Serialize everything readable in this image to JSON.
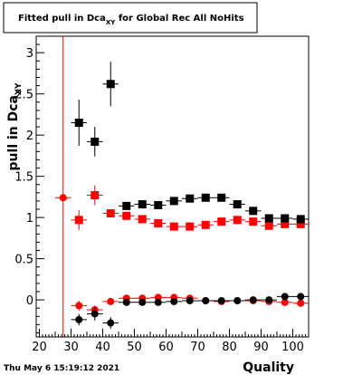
{
  "chart_data": {
    "type": "scatter",
    "title_main": "Fitted pull in Dca",
    "title_sub": "XY",
    "title_rest": " for Global Rec All NoHits",
    "xlabel": "Quality",
    "ylabel_main": "pull in Dca",
    "ylabel_sub": "XY",
    "xlim": [
      19,
      105
    ],
    "ylim": [
      -0.45,
      3.2
    ],
    "x_ticks": [
      20,
      30,
      40,
      50,
      60,
      70,
      80,
      90,
      100
    ],
    "y_ticks": [
      0,
      0.5,
      1,
      1.5,
      2,
      2.5,
      3
    ],
    "y_tick_labels": [
      "0",
      "0.5",
      "1",
      "1.5",
      "2",
      "2.5",
      "3"
    ],
    "vertical_line_x": 27.5,
    "series": [
      {
        "color": "#ff0000",
        "marker": "square",
        "points": [
          {
            "x": 32.5,
            "y": 0.97,
            "err": 0.12
          },
          {
            "x": 37.5,
            "y": 1.27,
            "err": 0.12
          },
          {
            "x": 42.5,
            "y": 1.05,
            "err": 0.03
          },
          {
            "x": 47.5,
            "y": 1.02,
            "err": 0.03
          },
          {
            "x": 52.5,
            "y": 0.98,
            "err": 0.02
          },
          {
            "x": 57.5,
            "y": 0.93,
            "err": 0.02
          },
          {
            "x": 62.5,
            "y": 0.89,
            "err": 0.02
          },
          {
            "x": 67.5,
            "y": 0.89,
            "err": 0.02
          },
          {
            "x": 72.5,
            "y": 0.91,
            "err": 0.02
          },
          {
            "x": 77.5,
            "y": 0.95,
            "err": 0.02
          },
          {
            "x": 82.5,
            "y": 0.97,
            "err": 0.02
          },
          {
            "x": 87.5,
            "y": 0.95,
            "err": 0.02
          },
          {
            "x": 92.5,
            "y": 0.9,
            "err": 0.02
          },
          {
            "x": 97.5,
            "y": 0.92,
            "err": 0.02
          },
          {
            "x": 102.5,
            "y": 0.92,
            "err": 0.02
          }
        ]
      },
      {
        "color": "#000000",
        "marker": "square",
        "points": [
          {
            "x": 32.5,
            "y": 2.15,
            "err": 0.28
          },
          {
            "x": 37.5,
            "y": 1.92,
            "err": 0.18
          },
          {
            "x": 42.5,
            "y": 2.62,
            "err": 0.27
          },
          {
            "x": 47.5,
            "y": 1.14,
            "err": 0.04
          },
          {
            "x": 52.5,
            "y": 1.16,
            "err": 0.03
          },
          {
            "x": 57.5,
            "y": 1.15,
            "err": 0.03
          },
          {
            "x": 62.5,
            "y": 1.2,
            "err": 0.03
          },
          {
            "x": 67.5,
            "y": 1.23,
            "err": 0.03
          },
          {
            "x": 72.5,
            "y": 1.24,
            "err": 0.03
          },
          {
            "x": 77.5,
            "y": 1.24,
            "err": 0.03
          },
          {
            "x": 82.5,
            "y": 1.16,
            "err": 0.03
          },
          {
            "x": 87.5,
            "y": 1.08,
            "err": 0.03
          },
          {
            "x": 92.5,
            "y": 0.99,
            "err": 0.03
          },
          {
            "x": 97.5,
            "y": 0.99,
            "err": 0.03
          },
          {
            "x": 102.5,
            "y": 0.98,
            "err": 0.03
          }
        ]
      },
      {
        "color": "#ff0000",
        "marker": "circle",
        "points": [
          {
            "x": 27.5,
            "y": 1.24,
            "err": 0.0
          },
          {
            "x": 32.5,
            "y": -0.07,
            "err": 0.06
          },
          {
            "x": 37.5,
            "y": -0.12,
            "err": 0.05
          },
          {
            "x": 42.5,
            "y": -0.02,
            "err": 0.02
          },
          {
            "x": 47.5,
            "y": 0.02,
            "err": 0.02
          },
          {
            "x": 52.5,
            "y": 0.02,
            "err": 0.02
          },
          {
            "x": 57.5,
            "y": 0.03,
            "err": 0.02
          },
          {
            "x": 62.5,
            "y": 0.03,
            "err": 0.02
          },
          {
            "x": 67.5,
            "y": 0.02,
            "err": 0.02
          },
          {
            "x": 72.5,
            "y": -0.01,
            "err": 0.02
          },
          {
            "x": 77.5,
            "y": -0.02,
            "err": 0.02
          },
          {
            "x": 82.5,
            "y": -0.01,
            "err": 0.02
          },
          {
            "x": 87.5,
            "y": -0.01,
            "err": 0.02
          },
          {
            "x": 92.5,
            "y": -0.02,
            "err": 0.02
          },
          {
            "x": 97.5,
            "y": -0.03,
            "err": 0.02
          },
          {
            "x": 102.5,
            "y": -0.04,
            "err": 0.02
          }
        ]
      },
      {
        "color": "#000000",
        "marker": "circle",
        "points": [
          {
            "x": 32.5,
            "y": -0.24,
            "err": 0.07
          },
          {
            "x": 37.5,
            "y": -0.17,
            "err": 0.08
          },
          {
            "x": 42.5,
            "y": -0.28,
            "err": 0.07
          },
          {
            "x": 47.5,
            "y": -0.03,
            "err": 0.02
          },
          {
            "x": 52.5,
            "y": -0.03,
            "err": 0.02
          },
          {
            "x": 57.5,
            "y": -0.03,
            "err": 0.02
          },
          {
            "x": 62.5,
            "y": -0.02,
            "err": 0.02
          },
          {
            "x": 67.5,
            "y": -0.01,
            "err": 0.02
          },
          {
            "x": 72.5,
            "y": -0.01,
            "err": 0.02
          },
          {
            "x": 77.5,
            "y": -0.01,
            "err": 0.02
          },
          {
            "x": 82.5,
            "y": -0.01,
            "err": 0.02
          },
          {
            "x": 87.5,
            "y": 0.0,
            "err": 0.02
          },
          {
            "x": 92.5,
            "y": 0.0,
            "err": 0.02
          },
          {
            "x": 97.5,
            "y": 0.04,
            "err": 0.02
          },
          {
            "x": 102.5,
            "y": 0.04,
            "err": 0.02
          }
        ]
      }
    ],
    "x_bin_halfwidth": 2.5,
    "colors": {
      "frame": "#000000",
      "vline": "#ff0000"
    }
  },
  "footer": {
    "timestamp": "Thu May  6 15:19:12 2021"
  }
}
